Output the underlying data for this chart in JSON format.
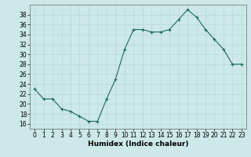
{
  "x": [
    0,
    1,
    2,
    3,
    4,
    5,
    6,
    7,
    8,
    9,
    10,
    11,
    12,
    13,
    14,
    15,
    16,
    17,
    18,
    19,
    20,
    21,
    22,
    23
  ],
  "y": [
    23,
    21,
    21,
    19,
    18.5,
    17.5,
    16.5,
    16.5,
    21,
    25,
    31,
    35,
    35,
    34.5,
    34.5,
    35,
    37,
    39,
    37.5,
    35,
    33,
    31,
    28,
    28
  ],
  "line_color": "#1a6b5a",
  "marker_color": "#1a6b5a",
  "bg_color": "#cce8e8",
  "grid_color": "#b8d8d8",
  "xlabel": "Humidex (Indice chaleur)",
  "ylim": [
    15,
    40
  ],
  "xlim": [
    -0.5,
    23.5
  ],
  "yticks": [
    16,
    18,
    20,
    22,
    24,
    26,
    28,
    30,
    32,
    34,
    36,
    38
  ],
  "xticks": [
    0,
    1,
    2,
    3,
    4,
    5,
    6,
    7,
    8,
    9,
    10,
    11,
    12,
    13,
    14,
    15,
    16,
    17,
    18,
    19,
    20,
    21,
    22,
    23
  ],
  "xlabel_fontsize": 6.5,
  "tick_fontsize": 5.5,
  "figsize": [
    3.2,
    2.0
  ],
  "dpi": 100
}
